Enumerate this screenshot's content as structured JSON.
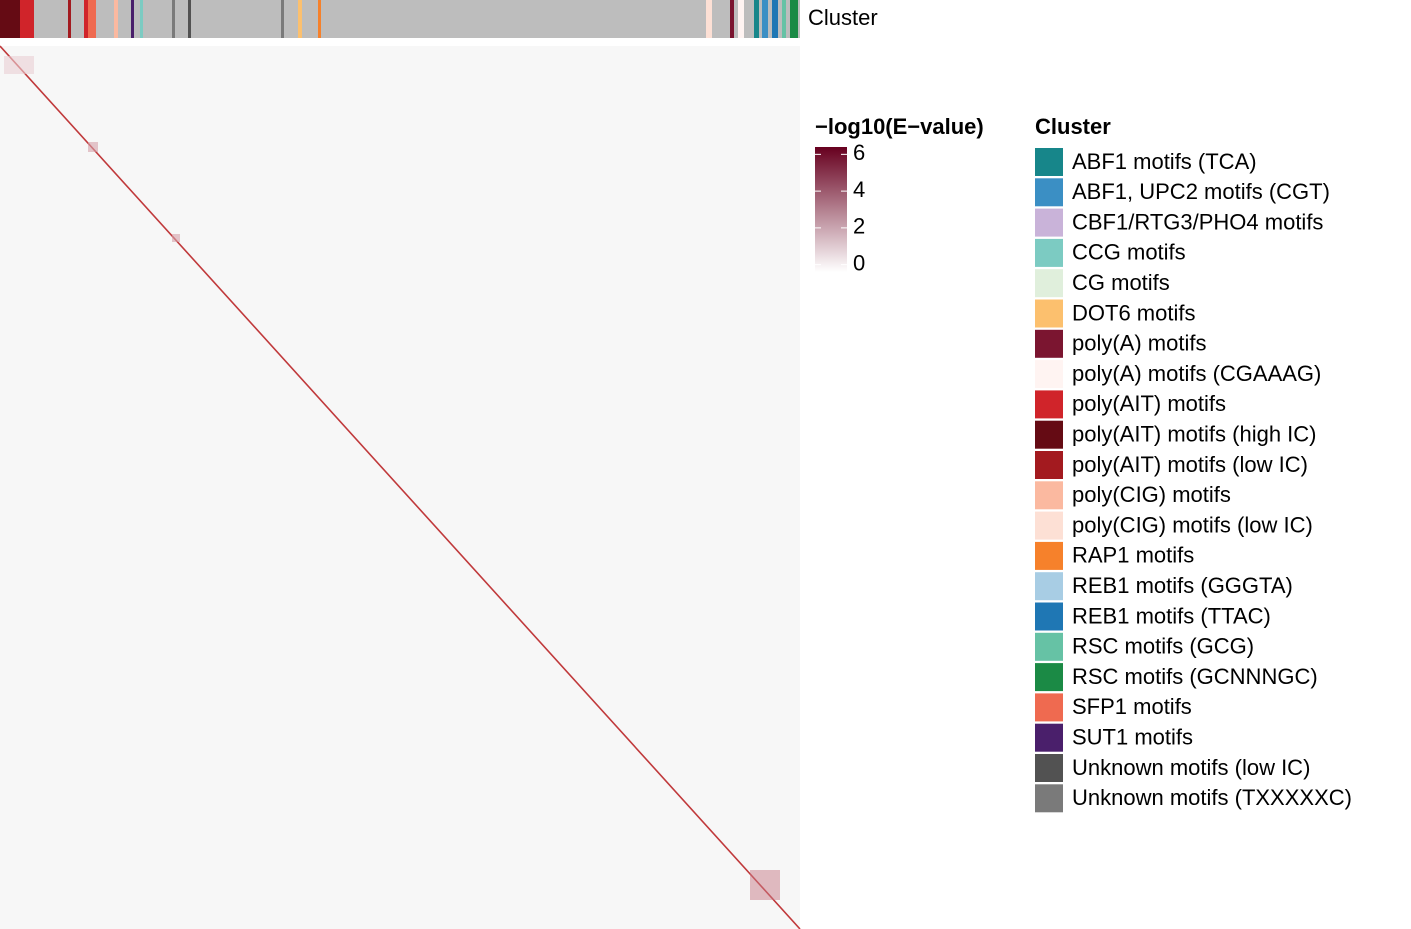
{
  "chart_data": {
    "type": "heatmap",
    "annotation_label": "Cluster",
    "colorbar": {
      "title": "−log10(E−value)",
      "clim": [
        -0.4,
        6.4
      ],
      "ticks": [
        0,
        2,
        4,
        6
      ],
      "low_color": "#ffffff",
      "high_color": "#67001f"
    },
    "legend": {
      "title": "Cluster",
      "items": [
        {
          "name": "ABF1 motifs (TCA)",
          "color": "#17868a"
        },
        {
          "name": "ABF1, UPC2 motifs (CGT)",
          "color": "#3b8fc4"
        },
        {
          "name": "CBF1/RTG3/PHO4 motifs",
          "color": "#c9b3d9"
        },
        {
          "name": "CCG motifs",
          "color": "#7ccbc2"
        },
        {
          "name": "CG motifs",
          "color": "#e0efdc"
        },
        {
          "name": "DOT6 motifs",
          "color": "#fcc06e"
        },
        {
          "name": "poly(A) motifs",
          "color": "#7b1530"
        },
        {
          "name": "poly(A) motifs (CGAAAG)",
          "color": "#fff4f2"
        },
        {
          "name": "poly(AIT) motifs",
          "color": "#d0242a"
        },
        {
          "name": "poly(AIT) motifs (high IC)",
          "color": "#650b14"
        },
        {
          "name": "poly(AIT) motifs (low IC)",
          "color": "#a31a1f"
        },
        {
          "name": "poly(CIG) motifs",
          "color": "#fbb9a0"
        },
        {
          "name": "poly(CIG) motifs (low IC)",
          "color": "#fde0d5"
        },
        {
          "name": "RAP1 motifs",
          "color": "#f6812b"
        },
        {
          "name": "REB1 motifs (GGGTA)",
          "color": "#a8cde4"
        },
        {
          "name": "REB1 motifs (TTAC)",
          "color": "#1f77b4"
        },
        {
          "name": "RSC motifs (GCG)",
          "color": "#66c2a5"
        },
        {
          "name": "RSC motifs (GCNNNGC)",
          "color": "#1b8a45"
        },
        {
          "name": "SFP1 motifs",
          "color": "#ef6a50"
        },
        {
          "name": "SUT1 motifs",
          "color": "#4a1f6b"
        },
        {
          "name": "Unknown motifs (low IC)",
          "color": "#525252"
        },
        {
          "name": "Unknown motifs (TXXXXXC)",
          "color": "#7a7a7a"
        }
      ]
    }
  }
}
